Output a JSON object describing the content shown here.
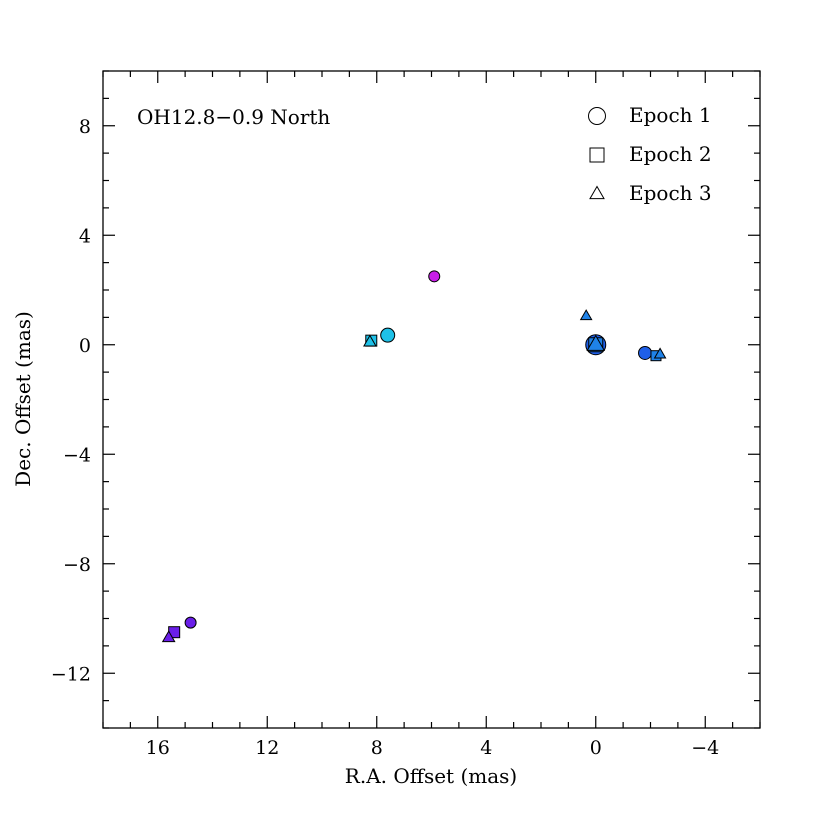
{
  "chart_data": {
    "type": "scatter",
    "title": "OH12.8−0.9 North",
    "xlabel": "R.A. Offset (mas)",
    "ylabel": "Dec. Offset (mas)",
    "xlim": [
      18,
      -6
    ],
    "ylim": [
      -14,
      10
    ],
    "xticks": [
      16,
      12,
      8,
      4,
      0,
      -4
    ],
    "yticks": [
      8,
      4,
      0,
      -4,
      -8,
      -12
    ],
    "xtick_labels": [
      "16",
      "12",
      "8",
      "4",
      "0",
      "−4"
    ],
    "ytick_labels": [
      "8",
      "4",
      "0",
      "−4",
      "−8",
      "−12"
    ],
    "grid": false,
    "legend_position": "top-right",
    "series": [
      {
        "name": "Epoch 1",
        "marker": "circle",
        "points": [
          {
            "x": 0.0,
            "y": 0.0,
            "color": "#1f5fe8",
            "size": 20
          },
          {
            "x": -1.8,
            "y": -0.3,
            "color": "#1f5fe8",
            "size": 13
          },
          {
            "x": 7.6,
            "y": 0.35,
            "color": "#1ec1e8",
            "size": 14
          },
          {
            "x": 5.9,
            "y": 2.5,
            "color": "#c81ee8",
            "size": 11
          },
          {
            "x": 14.8,
            "y": -10.15,
            "color": "#6a1ee8",
            "size": 11
          }
        ]
      },
      {
        "name": "Epoch 2",
        "marker": "square",
        "points": [
          {
            "x": 0.0,
            "y": 0.0,
            "color": "#1f82e8",
            "size": 14
          },
          {
            "x": -2.2,
            "y": -0.4,
            "color": "#1f82e8",
            "size": 10
          },
          {
            "x": 8.2,
            "y": 0.15,
            "color": "#1ec1e8",
            "size": 11
          },
          {
            "x": 15.4,
            "y": -10.5,
            "color": "#6a1ee8",
            "size": 11
          }
        ]
      },
      {
        "name": "Epoch 3",
        "marker": "triangle",
        "points": [
          {
            "x": 0.0,
            "y": 0.0,
            "color": "#1f82e8",
            "size": 17
          },
          {
            "x": 0.35,
            "y": 1.05,
            "color": "#1f82e8",
            "size": 11
          },
          {
            "x": -2.35,
            "y": -0.35,
            "color": "#1f82e8",
            "size": 11
          },
          {
            "x": 8.25,
            "y": 0.1,
            "color": "#1ec1e8",
            "size": 12
          },
          {
            "x": 15.6,
            "y": -10.7,
            "color": "#6a1ee8",
            "size": 12
          }
        ]
      }
    ]
  }
}
